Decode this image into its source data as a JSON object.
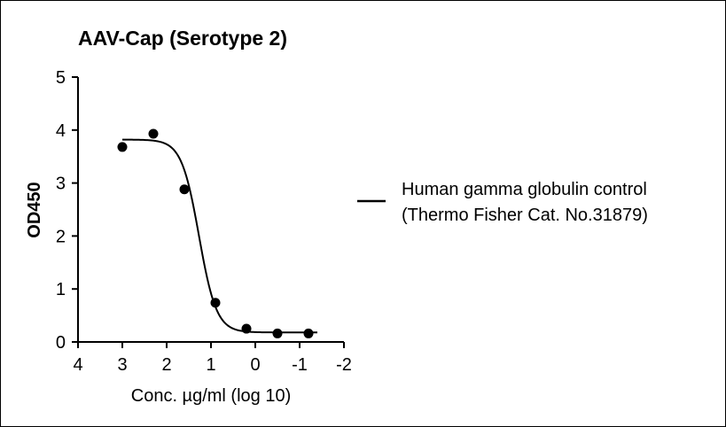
{
  "chart_data": {
    "type": "scatter",
    "title": "AAV-Cap (Serotype 2)",
    "xlabel": "Conc. µg/ml (log 10)",
    "ylabel": "OD450",
    "xlim": [
      4,
      -2
    ],
    "ylim": [
      0,
      5
    ],
    "x_ticks": [
      "4",
      "3",
      "2",
      "1",
      "0",
      "-1",
      "-2"
    ],
    "y_ticks": [
      "0",
      "1",
      "2",
      "3",
      "4",
      "5"
    ],
    "x_reversed": true,
    "grid": false,
    "legend_position": "right",
    "legend": {
      "line1": "Human gamma globulin control",
      "line2": "(Thermo Fisher Cat. No.31879)"
    },
    "series": [
      {
        "points": [
          {
            "x": 3.0,
            "y": 3.68
          },
          {
            "x": 2.3,
            "y": 3.93
          },
          {
            "x": 1.6,
            "y": 2.88
          },
          {
            "x": 0.9,
            "y": 0.74
          },
          {
            "x": 0.2,
            "y": 0.25
          },
          {
            "x": -0.5,
            "y": 0.16
          },
          {
            "x": -1.2,
            "y": 0.16
          }
        ],
        "fit": {
          "model": "4PL",
          "top": 3.82,
          "bottom": 0.18,
          "log_ec50": 1.27,
          "hill": 2.2,
          "x_range": [
            3.0,
            -1.4
          ]
        },
        "color": "#000000"
      }
    ]
  }
}
